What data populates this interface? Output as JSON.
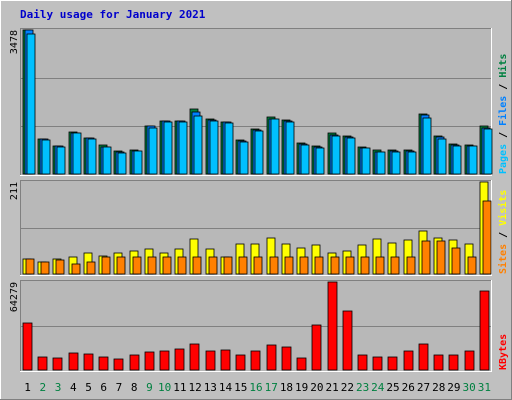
{
  "title": "Daily usage for January 2021",
  "colors": {
    "background": "#c0c0c0",
    "panel": "#b8b8b8",
    "title": "#0000cc",
    "hits": "#008040",
    "files": "#0080ff",
    "pages": "#00c0ff",
    "visits": "#ffff00",
    "sites": "#ff8000",
    "kbytes": "#ff0000",
    "weekend_day": "#008040",
    "weekday": "#000000"
  },
  "legend": {
    "top": {
      "hits": "Hits",
      "sep1": " / ",
      "files": "Files",
      "sep2": " / ",
      "pages": "Pages"
    },
    "middle": {
      "visits": "Visits",
      "sep": " / ",
      "sites": "Sites"
    },
    "bottom": {
      "kbytes": "KBytes"
    }
  },
  "chart_data": [
    {
      "type": "bar",
      "panel": "hits-files-pages",
      "max_label": "3478",
      "ylim": [
        0,
        3478
      ],
      "categories": [
        "1",
        "2",
        "3",
        "4",
        "5",
        "6",
        "7",
        "8",
        "9",
        "10",
        "11",
        "12",
        "13",
        "14",
        "15",
        "16",
        "17",
        "18",
        "19",
        "20",
        "21",
        "22",
        "23",
        "24",
        "25",
        "26",
        "27",
        "28",
        "29",
        "30",
        "31"
      ],
      "series": [
        {
          "name": "Hits",
          "values": [
            3478,
            834,
            668,
            1015,
            870,
            696,
            551,
            584,
            1165,
            1278,
            1278,
            1573,
            1332,
            1268,
            810,
            1091,
            1368,
            1312,
            743,
            678,
            985,
            907,
            658,
            571,
            575,
            571,
            1450,
            929,
            727,
            712,
            1156
          ]
        },
        {
          "name": "Files",
          "values": [
            3478,
            834,
            668,
            1000,
            861,
            664,
            528,
            564,
            1148,
            1278,
            1275,
            1487,
            1310,
            1244,
            793,
            1069,
            1330,
            1280,
            719,
            645,
            946,
            888,
            632,
            543,
            562,
            551,
            1431,
            883,
            696,
            678,
            1123
          ]
        },
        {
          "name": "Pages",
          "values": [
            3380,
            811,
            645,
            979,
            848,
            645,
            505,
            548,
            1110,
            1256,
            1256,
            1401,
            1282,
            1220,
            779,
            1037,
            1318,
            1250,
            703,
            626,
            924,
            874,
            620,
            531,
            531,
            525,
            1362,
            852,
            676,
            667,
            1087
          ]
        }
      ]
    },
    {
      "type": "bar",
      "panel": "visits-sites",
      "max_label": "211",
      "ylim": [
        0,
        211
      ],
      "categories": [
        "1",
        "2",
        "3",
        "4",
        "5",
        "6",
        "7",
        "8",
        "9",
        "10",
        "11",
        "12",
        "13",
        "14",
        "15",
        "16",
        "17",
        "18",
        "19",
        "20",
        "21",
        "22",
        "23",
        "24",
        "25",
        "26",
        "27",
        "28",
        "29",
        "30",
        "31"
      ],
      "series": [
        {
          "name": "Visits",
          "values": [
            35,
            28,
            35,
            38,
            48,
            41,
            48,
            52,
            58,
            48,
            58,
            80,
            58,
            40,
            68,
            68,
            82,
            68,
            60,
            66,
            49,
            52,
            66,
            81,
            72,
            77,
            99,
            82,
            79,
            68,
            211
          ]
        },
        {
          "name": "Sites",
          "values": [
            35,
            28,
            32,
            24,
            28,
            38,
            38,
            38,
            38,
            38,
            38,
            38,
            38,
            38,
            38,
            38,
            38,
            38,
            38,
            38,
            38,
            38,
            38,
            38,
            38,
            38,
            75,
            75,
            59,
            38,
            167
          ]
        }
      ]
    },
    {
      "type": "bar",
      "panel": "kbytes",
      "max_label": "64279",
      "ylim": [
        0,
        64279
      ],
      "categories": [
        "1",
        "2",
        "3",
        "4",
        "5",
        "6",
        "7",
        "8",
        "9",
        "10",
        "11",
        "12",
        "13",
        "14",
        "15",
        "16",
        "17",
        "18",
        "19",
        "20",
        "21",
        "22",
        "23",
        "24",
        "25",
        "26",
        "27",
        "28",
        "29",
        "30",
        "31"
      ],
      "series": [
        {
          "name": "KBytes",
          "values": [
            34500,
            9800,
            9100,
            12700,
            11400,
            9200,
            8300,
            11000,
            13500,
            14200,
            15000,
            19300,
            13600,
            14700,
            10800,
            13800,
            18100,
            16500,
            9000,
            33000,
            64279,
            43300,
            11200,
            9400,
            9400,
            13700,
            18800,
            11000,
            11000,
            13700,
            57700
          ]
        }
      ]
    }
  ]
}
